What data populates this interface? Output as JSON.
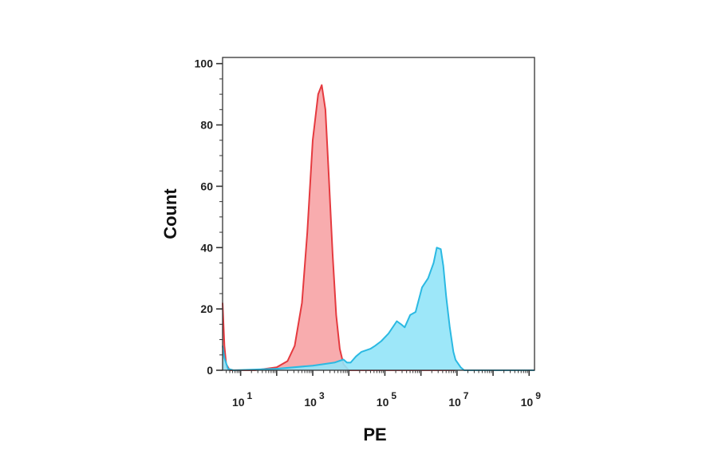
{
  "chart_data": {
    "type": "area",
    "title": "",
    "xlabel": "PE",
    "ylabel": "Count",
    "x_scale": "log",
    "xlim": [
      3.16,
      1410000000.0
    ],
    "ylim": [
      0,
      102
    ],
    "grid": false,
    "legend": "none",
    "x_ticks": [
      {
        "base": "10",
        "exp": "1",
        "value": 10
      },
      {
        "base": "10",
        "exp": "3",
        "value": 1000
      },
      {
        "base": "10",
        "exp": "5",
        "value": 100000
      },
      {
        "base": "10",
        "exp": "7",
        "value": 10000000
      },
      {
        "base": "10",
        "exp": "9",
        "value": 1000000000
      }
    ],
    "y_ticks": [
      "0",
      "20",
      "40",
      "60",
      "80",
      "100"
    ],
    "series": [
      {
        "color": "#e53a3f",
        "fill": "#f7a3a5",
        "x": [
          3.16,
          3.55,
          3.98,
          5.01,
          25.1,
          100,
          200,
          316,
          501,
          708,
          1000,
          1410,
          1780,
          2240,
          2820,
          3550,
          4470,
          5620,
          7080,
          10000,
          8910000.0
        ],
        "y": [
          22,
          8,
          2,
          0,
          0,
          1,
          3,
          8,
          22,
          45,
          75,
          90,
          93,
          85,
          62,
          38,
          18,
          7,
          2,
          0,
          0
        ]
      },
      {
        "color": "#2bb9e2",
        "fill": "#92e4f8",
        "x": [
          3.16,
          3.55,
          4.47,
          6.31,
          100,
          1000,
          3980,
          7080,
          8910,
          11200,
          15800,
          22400,
          39800,
          53700,
          79400,
          126000.0,
          214000.0,
          282000.0,
          355000.0,
          501000.0,
          708000.0,
          1070000.0,
          1580000.0,
          2240000.0,
          2750000.0,
          3550000.0,
          4170000.0,
          5010000.0,
          6310000.0,
          7940000.0,
          9120000.0,
          12600000.0,
          15800000.0,
          1410000000.0
        ],
        "y": [
          8,
          4,
          0.5,
          0,
          0.5,
          1.5,
          2.5,
          3.5,
          2.5,
          2.5,
          4.5,
          6,
          7,
          8,
          9.5,
          12,
          16,
          15,
          14,
          18,
          19,
          27,
          30,
          35,
          40,
          39.5,
          34,
          24,
          14,
          6,
          3.4,
          1,
          0,
          0
        ]
      }
    ]
  }
}
